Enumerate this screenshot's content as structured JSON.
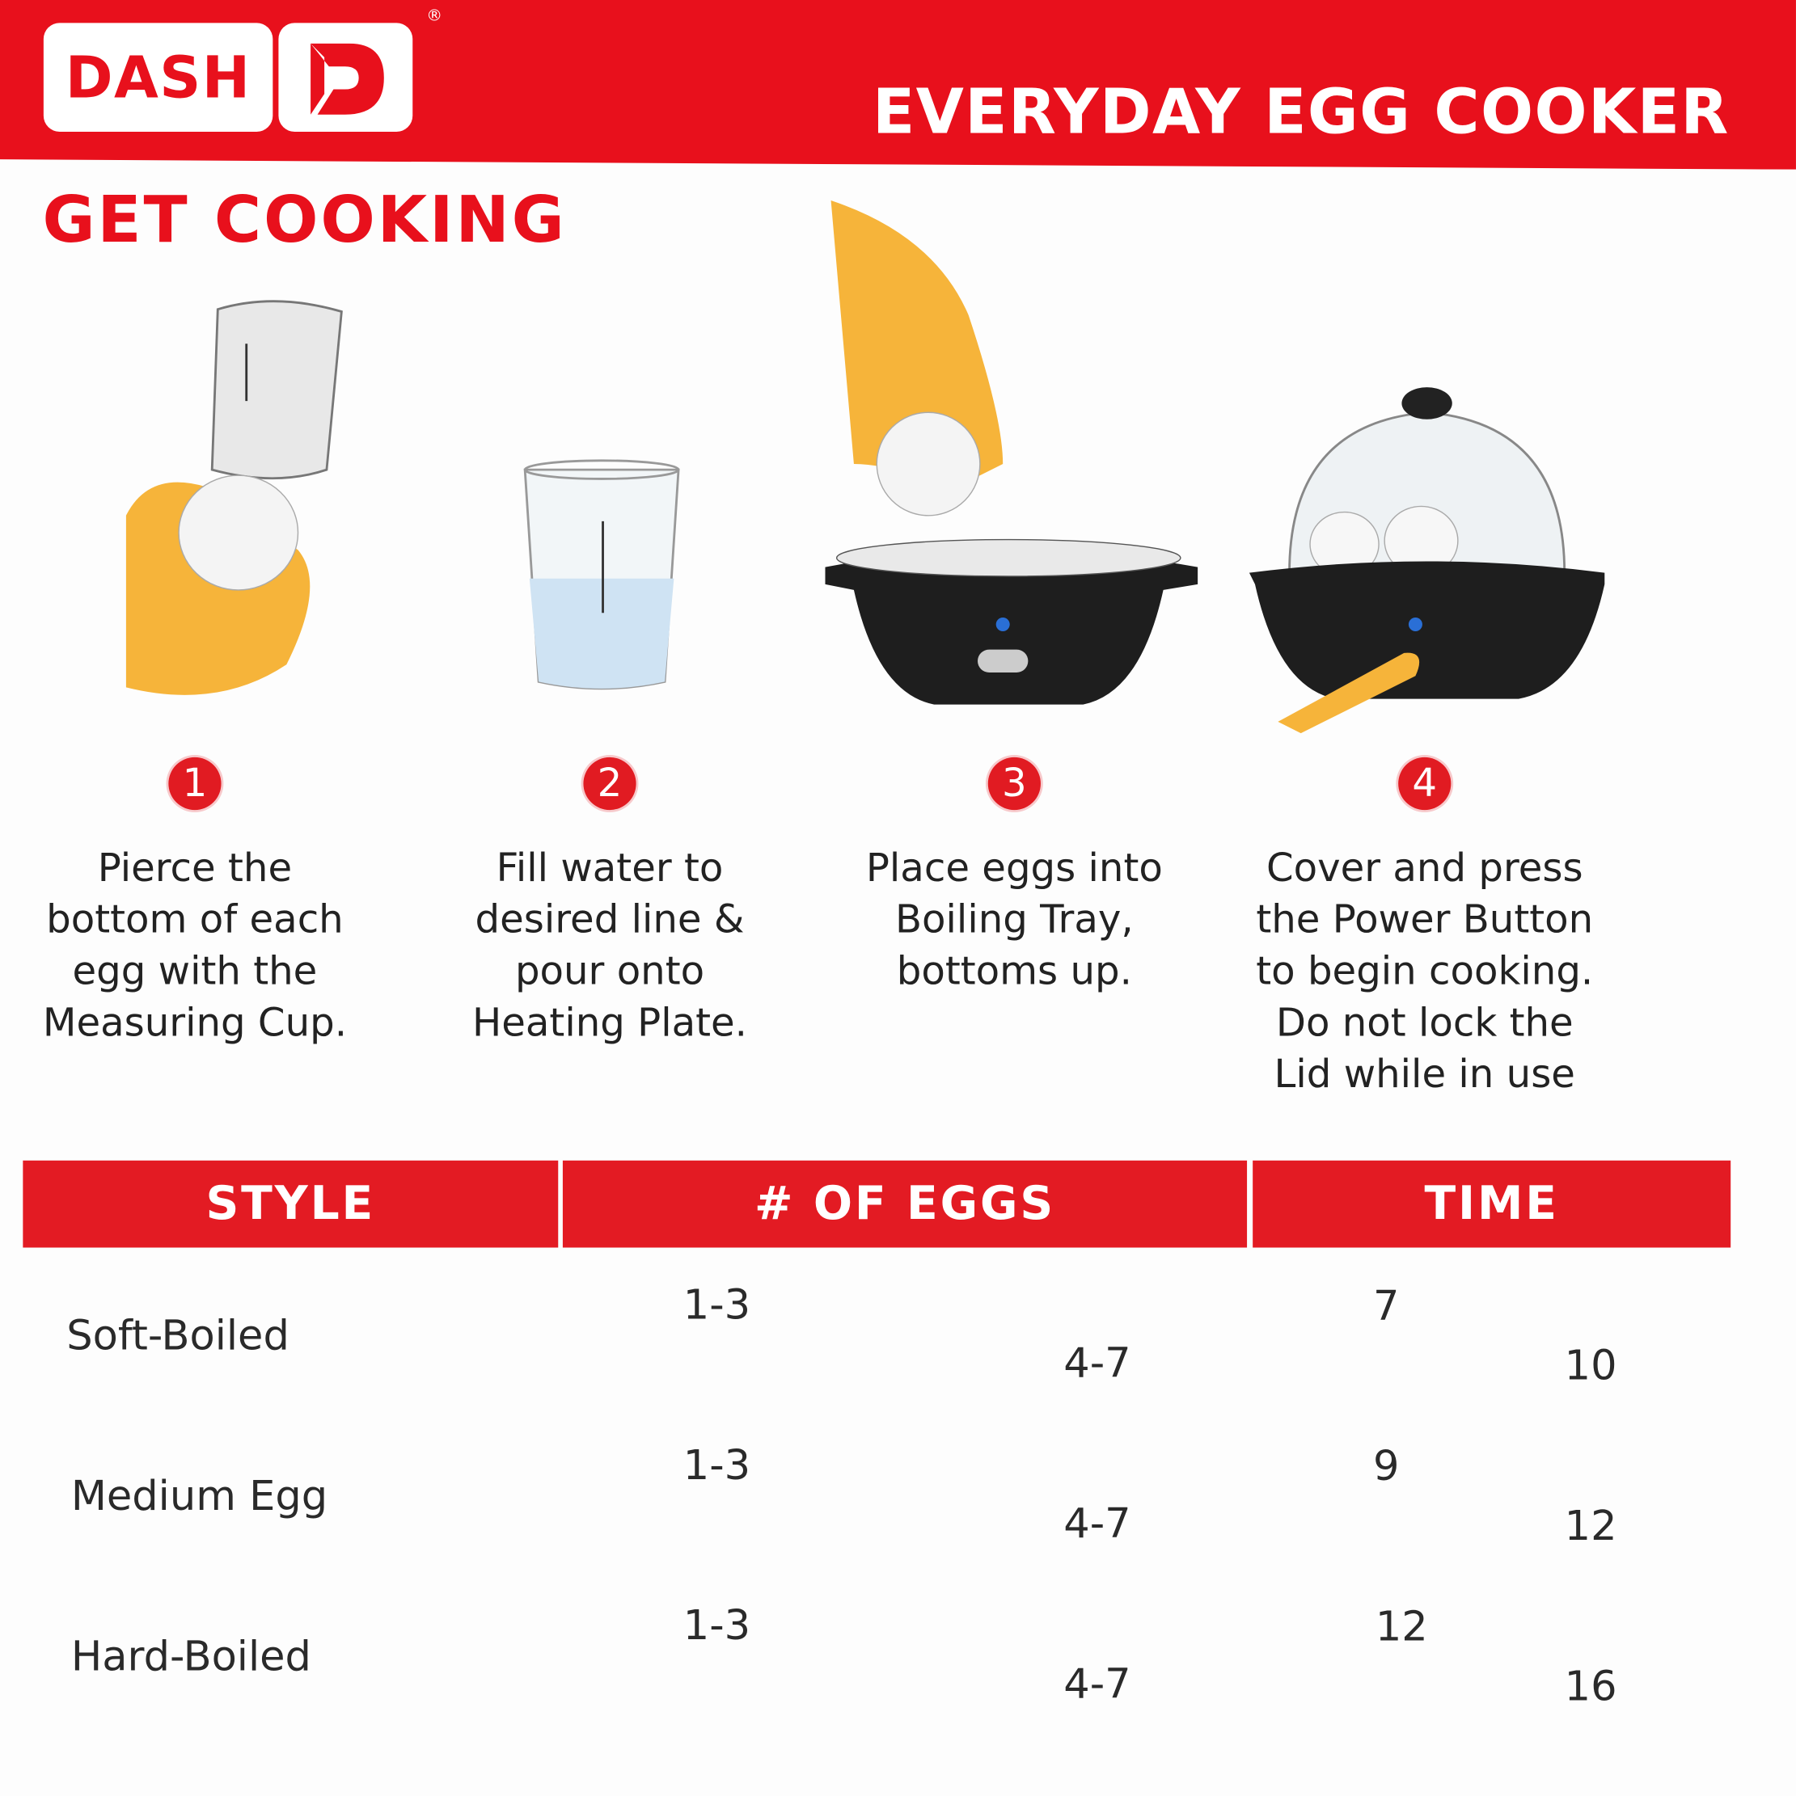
{
  "brand": {
    "logo_text": "DASH",
    "registered": "®"
  },
  "header": {
    "title": "EVERYDAY EGG COOKER"
  },
  "section_title": "GET COOKING",
  "steps": [
    {
      "number": "1",
      "lines": [
        "Pierce the",
        "bottom of each",
        "egg with the",
        "Measuring Cup."
      ]
    },
    {
      "number": "2",
      "lines": [
        "Fill water to",
        "desired line &",
        "pour onto",
        "Heating Plate."
      ]
    },
    {
      "number": "3",
      "lines": [
        "Place eggs into",
        "Boiling Tray,",
        "bottoms up."
      ]
    },
    {
      "number": "4",
      "lines": [
        "Cover and press",
        "the Power Button",
        "to begin cooking.",
        "Do not lock the",
        "Lid while in use"
      ]
    }
  ],
  "table": {
    "headers": [
      "STYLE",
      "# OF EGGS",
      "TIME"
    ],
    "rows": [
      {
        "style": "Soft-Boiled",
        "eggs_small": "1-3",
        "eggs_large": "4-7",
        "time_small": "7",
        "time_large": "10"
      },
      {
        "style": "Medium Egg",
        "eggs_small": "1-3",
        "eggs_large": "4-7",
        "time_small": "9",
        "time_large": "12"
      },
      {
        "style": "Hard-Boiled",
        "eggs_small": "1-3",
        "eggs_large": "4-7",
        "time_small": "12",
        "time_large": "16"
      }
    ]
  },
  "colors": {
    "brand_red": "#e8101c",
    "table_header_red": "#e31b23"
  }
}
